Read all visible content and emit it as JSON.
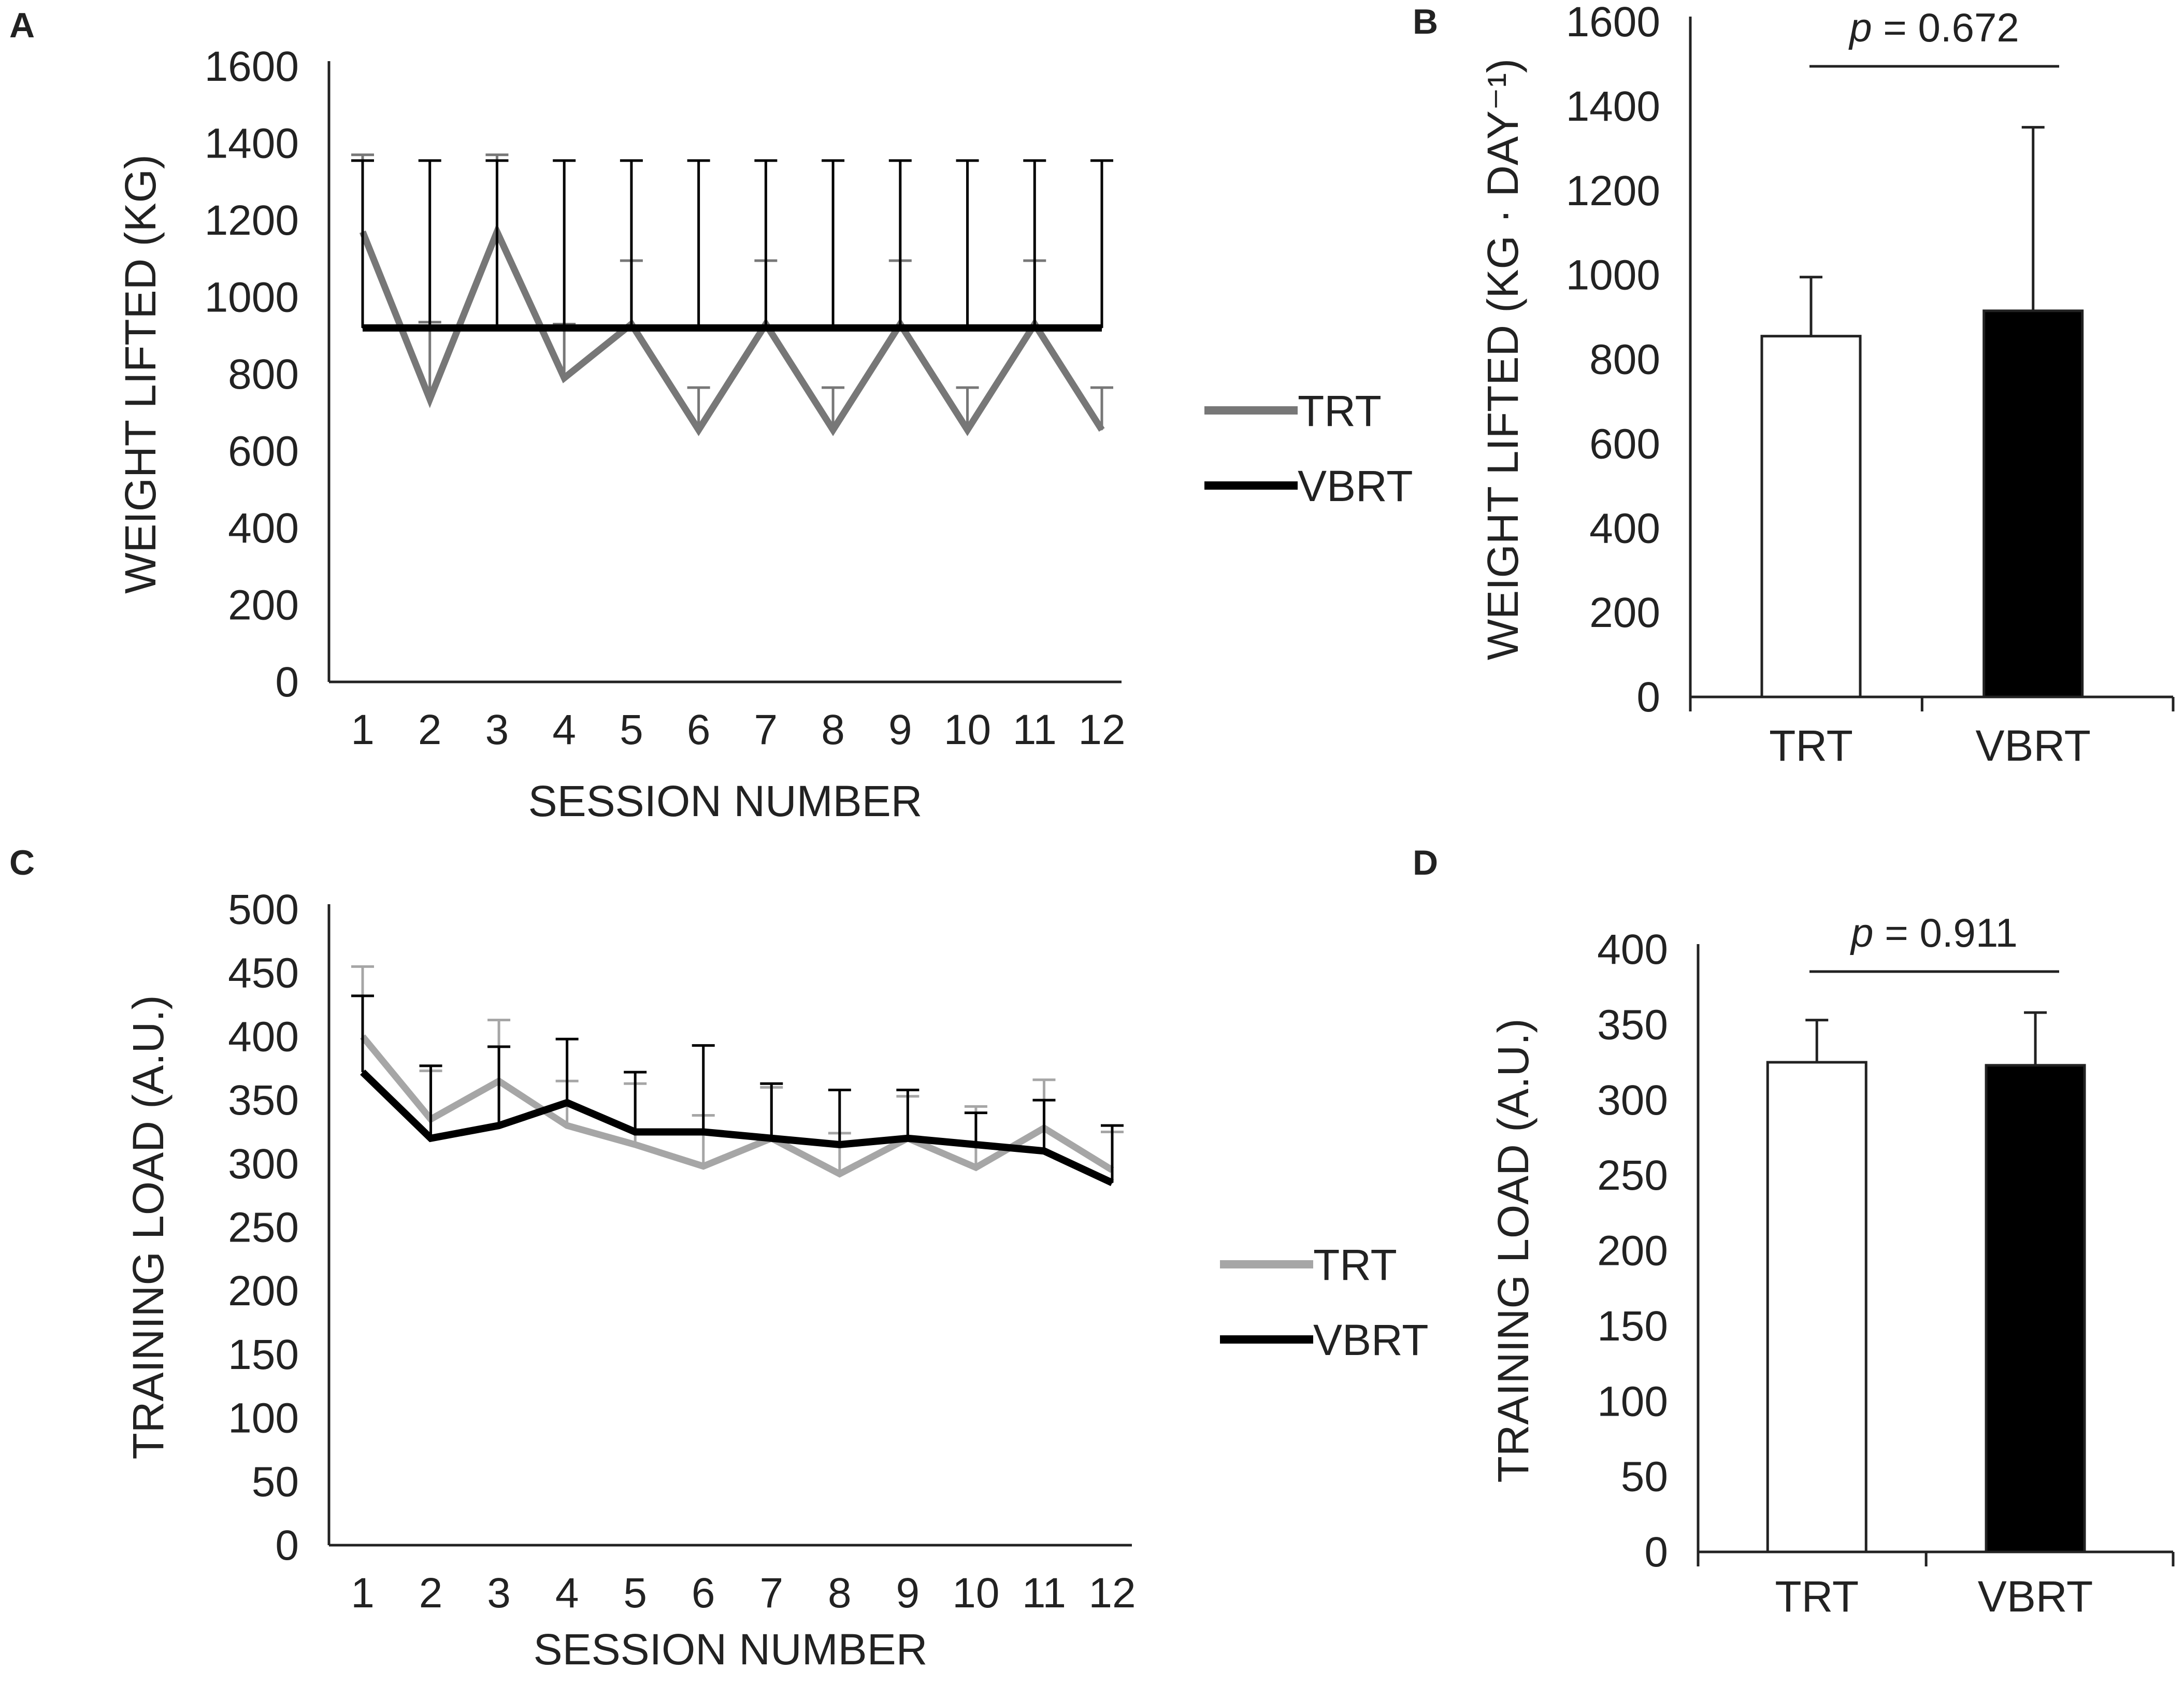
{
  "chart_data": [
    {
      "panel": "A",
      "type": "line",
      "xlabel": "SESSION NUMBER",
      "ylabel": "WEIGHT LIFTED  (KG)",
      "ylim": [
        0,
        1600
      ],
      "yticks": [
        0,
        200,
        400,
        600,
        800,
        1000,
        1200,
        1400,
        1600
      ],
      "categories": [
        "1",
        "2",
        "3",
        "4",
        "5",
        "6",
        "7",
        "8",
        "9",
        "10",
        "11",
        "12"
      ],
      "series": [
        {
          "name": "TRT",
          "color": "#777777",
          "values": [
            1170,
            735,
            1170,
            790,
            930,
            655,
            930,
            655,
            930,
            655,
            930,
            655
          ],
          "error": [
            200,
            200,
            200,
            140,
            165,
            110,
            165,
            110,
            165,
            110,
            165,
            110
          ]
        },
        {
          "name": "VBRT",
          "color": "#000000",
          "values": [
            920,
            920,
            920,
            920,
            920,
            920,
            920,
            920,
            920,
            920,
            920,
            920
          ],
          "error": [
            435,
            435,
            435,
            435,
            435,
            435,
            435,
            435,
            435,
            435,
            435,
            435
          ]
        }
      ],
      "legend": "right"
    },
    {
      "panel": "B",
      "type": "bar",
      "ylabel": "WEIGHT LIFTED  (KG · DAY⁻¹)",
      "ylim": [
        0,
        1600
      ],
      "yticks": [
        0,
        200,
        400,
        600,
        800,
        1000,
        1200,
        1400,
        1600
      ],
      "categories": [
        "TRT",
        "VBRT"
      ],
      "values": [
        855,
        915
      ],
      "error": [
        140,
        435
      ],
      "bar_colors": [
        "#ffffff",
        "#000000"
      ],
      "annotation": "p = 0.672"
    },
    {
      "panel": "C",
      "type": "line",
      "xlabel": "SESSION NUMBER",
      "ylabel": "TRAINING  LOAD  (A.U.)",
      "ylim": [
        0,
        500
      ],
      "yticks": [
        0,
        50,
        100,
        150,
        200,
        250,
        300,
        350,
        400,
        450,
        500
      ],
      "categories": [
        "1",
        "2",
        "3",
        "4",
        "5",
        "6",
        "7",
        "8",
        "9",
        "10",
        "11",
        "12"
      ],
      "series": [
        {
          "name": "TRT",
          "color": "#a6a6a6",
          "values": [
            400,
            335,
            365,
            330,
            315,
            298,
            320,
            292,
            320,
            297,
            328,
            295
          ],
          "error": [
            55,
            38,
            48,
            35,
            48,
            40,
            40,
            32,
            33,
            48,
            38,
            30
          ]
        },
        {
          "name": "VBRT",
          "color": "#000000",
          "values": [
            372,
            320,
            330,
            348,
            325,
            325,
            320,
            315,
            320,
            315,
            310,
            285
          ],
          "error": [
            60,
            57,
            62,
            50,
            47,
            68,
            43,
            43,
            38,
            25,
            40,
            45
          ]
        }
      ],
      "legend": "right"
    },
    {
      "panel": "D",
      "type": "bar",
      "ylabel": "TRAINING  LOAD  (A.U.)",
      "ylim": [
        0,
        400
      ],
      "yticks": [
        0,
        50,
        100,
        150,
        200,
        250,
        300,
        350,
        400
      ],
      "categories": [
        "TRT",
        "VBRT"
      ],
      "values": [
        325,
        323
      ],
      "error": [
        28,
        35
      ],
      "bar_colors": [
        "#ffffff",
        "#000000"
      ],
      "annotation": "p = 0.911"
    }
  ]
}
